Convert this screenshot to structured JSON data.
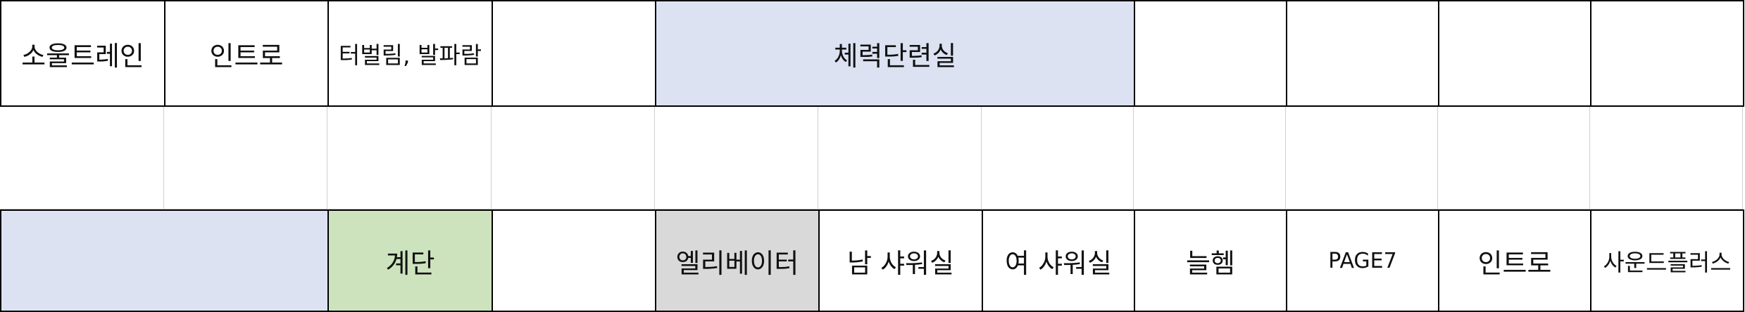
{
  "colors": {
    "blue_fill": "#dce2f2",
    "green_fill": "#cde3bd",
    "gray_fill": "#d9d9d9",
    "border": "#000000",
    "gridline": "#cfcfcf"
  },
  "row1": {
    "soul_train": "소울트레인",
    "intro": "인트로",
    "turbulim": "터벌림, 발파람",
    "fitness_room": "체력단련실"
  },
  "row3": {
    "stairs": "계단",
    "elevator": "엘리베이터",
    "mens_shower": "남 샤워실",
    "womens_shower": "여 샤워실",
    "neulhem": "늘헴",
    "page7": "PAGE7",
    "intro": "인트로",
    "sound_plus": "사운드플러스"
  }
}
